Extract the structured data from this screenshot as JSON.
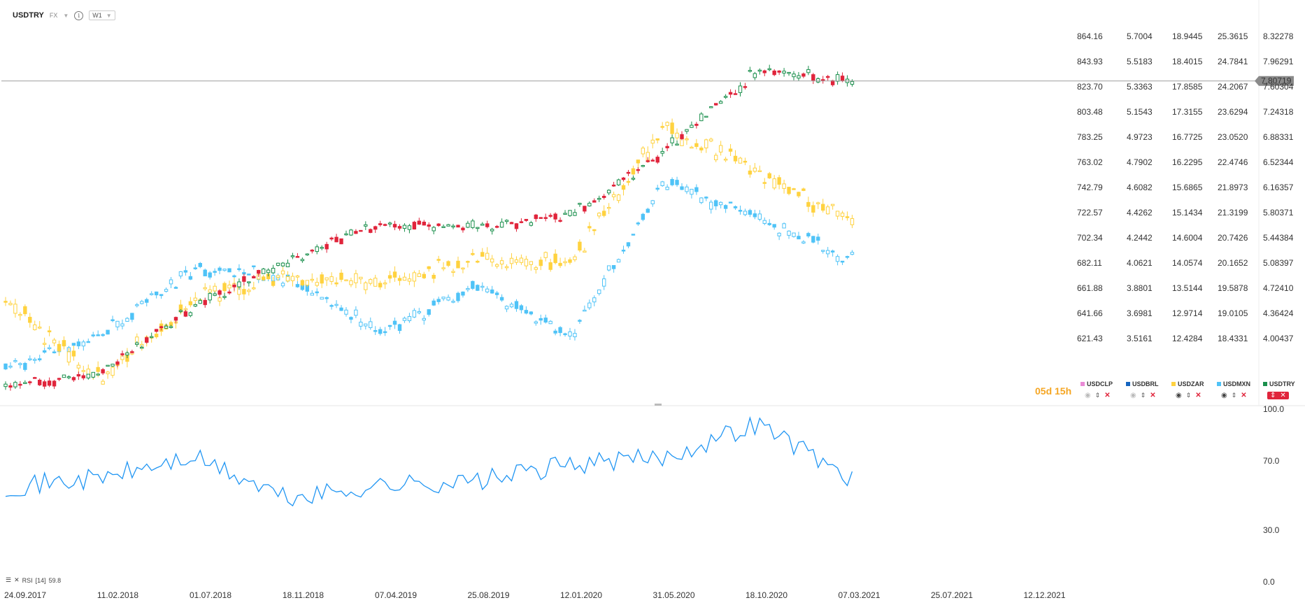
{
  "header": {
    "symbol": "USDTRY",
    "market": "FX",
    "timeframe": "W1",
    "info_icon": "info-icon",
    "caret_icon": "chevron-down-icon"
  },
  "countdown": "05d 15h",
  "current_price": "7.80719",
  "colors": {
    "up": "#1a8f4c",
    "down": "#e0243b",
    "usdzar": "#ffd23f",
    "usdmxn": "#4fc3f7",
    "usdbrl": "#1565c0",
    "usdclp": "#e98ad6",
    "rsi": "#2196f3",
    "price_line": "#9e9e9e"
  },
  "legend": [
    {
      "name": "USDCLP",
      "color": "#e98ad6",
      "visible": false
    },
    {
      "name": "USDBRL",
      "color": "#1565c0",
      "visible": false
    },
    {
      "name": "USDZAR",
      "color": "#ffd23f",
      "visible": true
    },
    {
      "name": "USDMXN",
      "color": "#4fc3f7",
      "visible": true
    },
    {
      "name": "USDTRY",
      "color": "#1a8f4c",
      "visible": true
    }
  ],
  "price_scales": {
    "usdclp": [
      "864.16",
      "843.93",
      "823.70",
      "803.48",
      "783.25",
      "763.02",
      "742.79",
      "722.57",
      "702.34",
      "682.11",
      "661.88",
      "641.66",
      "621.43"
    ],
    "usdbrl": [
      "5.7004",
      "5.5183",
      "5.3363",
      "5.1543",
      "4.9723",
      "4.7902",
      "4.6082",
      "4.4262",
      "4.2442",
      "4.0621",
      "3.8801",
      "3.6981",
      "3.5161"
    ],
    "usdzar": [
      "18.9445",
      "18.4015",
      "17.8585",
      "17.3155",
      "16.7725",
      "16.2295",
      "15.6865",
      "15.1434",
      "14.6004",
      "14.0574",
      "13.5144",
      "12.9714",
      "12.4284"
    ],
    "usdmxn": [
      "25.3615",
      "24.7841",
      "24.2067",
      "23.6294",
      "23.0520",
      "22.4746",
      "21.8973",
      "21.3199",
      "20.7426",
      "20.1652",
      "19.5878",
      "19.0105",
      "18.4331"
    ],
    "usdtry": [
      "8.32278",
      "7.96291",
      "7.60304",
      "7.24318",
      "6.88331",
      "6.52344",
      "6.16357",
      "5.80371",
      "5.44384",
      "5.08397",
      "4.72410",
      "4.36424",
      "4.00437"
    ]
  },
  "rsi": {
    "label": "RSI",
    "period": "[14]",
    "value": "59.8",
    "levels": [
      "100.0",
      "70.0",
      "30.0",
      "0.0"
    ]
  },
  "x_axis": [
    "24.09.2017",
    "11.02.2018",
    "01.07.2018",
    "18.11.2018",
    "07.04.2019",
    "25.08.2019",
    "12.01.2020",
    "31.05.2020",
    "18.10.2020",
    "07.03.2021",
    "25.07.2021",
    "12.12.2021"
  ],
  "chart_data": {
    "type": "candlestick",
    "symbol": "USDTRY",
    "timeframe": "W1",
    "x": [
      "24.09.2017",
      "11.02.2018",
      "01.07.2018",
      "18.11.2018",
      "07.04.2019",
      "25.08.2019",
      "12.01.2020",
      "31.05.2020",
      "18.10.2020",
      "07.03.2021"
    ],
    "series": [
      {
        "name": "USDTRY",
        "y_axis": "usdtry",
        "values": [
          3.58,
          3.8,
          4.71,
          5.35,
          5.84,
          5.8,
          5.95,
          6.85,
          7.95,
          7.81
        ]
      },
      {
        "name": "USDZAR",
        "y_axis": "usdzar",
        "values": [
          13.6,
          12.0,
          13.7,
          14.1,
          14.0,
          14.5,
          14.4,
          17.2,
          16.3,
          15.2
        ]
      },
      {
        "name": "USDMXN",
        "y_axis": "usdmxn",
        "values": [
          18.2,
          18.9,
          20.4,
          20.2,
          19.0,
          20.0,
          18.9,
          22.3,
          21.5,
          20.6
        ]
      },
      {
        "name": "RSI",
        "y_axis": "rsi",
        "values": [
          55,
          60,
          72,
          48,
          56,
          58,
          68,
          72,
          92,
          59.8
        ]
      }
    ],
    "ylim_usdtry": [
      4.00437,
      8.32278
    ],
    "ylim_rsi": [
      0,
      100
    ],
    "current_price": 7.80719,
    "grid": false,
    "legend": "right"
  }
}
